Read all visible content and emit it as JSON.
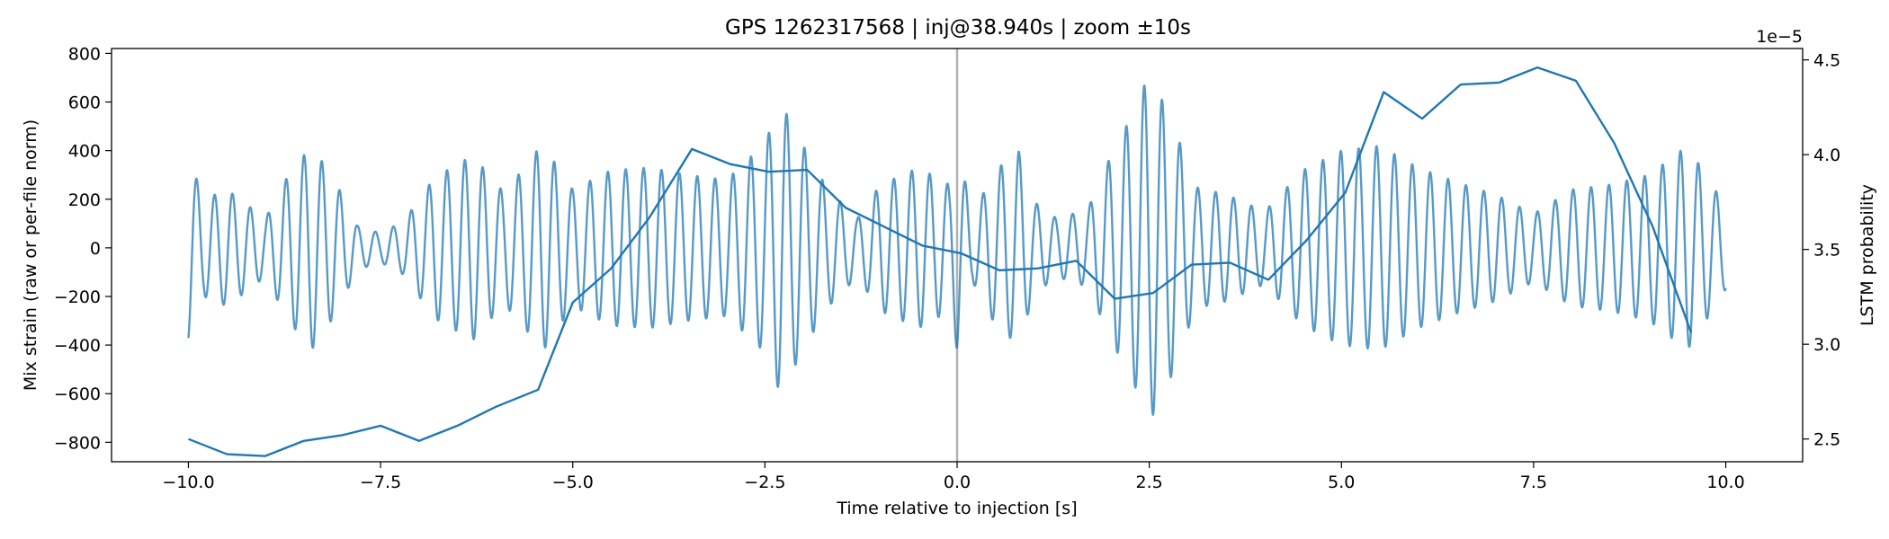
{
  "chart_data": {
    "type": "line",
    "title": "GPS 1262317568 | inj@38.940s | zoom ±10s",
    "xlabel": "Time relative to injection [s]",
    "ylabel_left": "Mix strain (raw or per-file norm)",
    "ylabel_right": "LSTM probability",
    "right_offset_label": "1e−5",
    "xlim": [
      -11.0,
      11.0
    ],
    "ylim_left": [
      -880,
      820
    ],
    "ylim_right": [
      2.38,
      4.56
    ],
    "x_ticks": [
      -10,
      -7.5,
      -5,
      -2.5,
      0,
      2.5,
      5,
      7.5,
      10
    ],
    "x_tick_labels": [
      "−10.0",
      "−7.5",
      "−5.0",
      "−2.5",
      "0.0",
      "2.5",
      "5.0",
      "7.5",
      "10.0"
    ],
    "y_ticks_left": [
      -800,
      -600,
      -400,
      -200,
      0,
      200,
      400,
      600,
      800
    ],
    "y_tick_labels_left": [
      "−800",
      "−600",
      "−400",
      "−200",
      "0",
      "200",
      "400",
      "600",
      "800"
    ],
    "y_ticks_right": [
      2.5,
      3.0,
      3.5,
      4.0,
      4.5
    ],
    "y_tick_labels_right": [
      "2.5",
      "3.0",
      "3.5",
      "4.0",
      "4.5"
    ],
    "vline_x": 0.0,
    "series": [
      {
        "name": "Mix strain",
        "axis": "left",
        "color": "#1f77b4",
        "opacity": 0.75,
        "oscillation_freq_hz": 4.3,
        "x_range": [
          -10.0,
          10.0
        ],
        "envelope": {
          "t": [
            -10.0,
            -9.8,
            -9.5,
            -9.0,
            -8.7,
            -8.4,
            -8.1,
            -7.8,
            -7.5,
            -7.2,
            -6.8,
            -6.3,
            -5.9,
            -5.6,
            -5.4,
            -5.0,
            -4.5,
            -4.0,
            -3.5,
            -3.0,
            -2.5,
            -2.3,
            -2.0,
            -1.7,
            -1.3,
            -1.0,
            -0.5,
            -0.1,
            0.0,
            0.2,
            0.5,
            0.8,
            1.0,
            1.3,
            1.7,
            2.0,
            2.3,
            2.5,
            2.8,
            3.1,
            3.5,
            4.0,
            4.5,
            5.0,
            5.5,
            6.0,
            6.5,
            7.0,
            7.5,
            8.0,
            8.5,
            9.0,
            9.5,
            10.0
          ],
          "a": [
            380,
            200,
            240,
            120,
            300,
            420,
            280,
            90,
            60,
            110,
            290,
            380,
            230,
            340,
            430,
            240,
            320,
            330,
            300,
            280,
            430,
            600,
            420,
            250,
            120,
            260,
            330,
            260,
            420,
            140,
            320,
            400,
            190,
            120,
            160,
            380,
            560,
            720,
            520,
            250,
            220,
            150,
            320,
            400,
            420,
            330,
            270,
            220,
            140,
            240,
            260,
            300,
            420,
            170
          ]
        }
      },
      {
        "name": "LSTM probability",
        "axis": "right",
        "color": "#1f77b4",
        "x": [
          -10.0,
          -9.5,
          -9.0,
          -8.5,
          -8.0,
          -7.5,
          -7.0,
          -6.5,
          -6.0,
          -5.45,
          -5.0,
          -4.5,
          -4.0,
          -3.45,
          -2.95,
          -2.45,
          -1.95,
          -1.45,
          -0.95,
          -0.45,
          0.05,
          0.55,
          1.05,
          1.55,
          2.05,
          2.55,
          3.05,
          3.55,
          4.05,
          4.55,
          5.05,
          5.55,
          6.05,
          6.55,
          7.05,
          7.55,
          8.05,
          8.55,
          9.05,
          9.55
        ],
        "y": [
          2.5,
          2.42,
          2.41,
          2.49,
          2.52,
          2.57,
          2.49,
          2.57,
          2.67,
          2.76,
          3.22,
          3.4,
          3.67,
          4.03,
          3.95,
          3.91,
          3.92,
          3.72,
          3.62,
          3.52,
          3.48,
          3.39,
          3.4,
          3.44,
          3.24,
          3.27,
          3.42,
          3.43,
          3.34,
          3.55,
          3.8,
          4.33,
          4.19,
          4.37,
          4.38,
          4.46,
          4.39,
          4.06,
          3.62,
          3.06
        ]
      }
    ]
  }
}
